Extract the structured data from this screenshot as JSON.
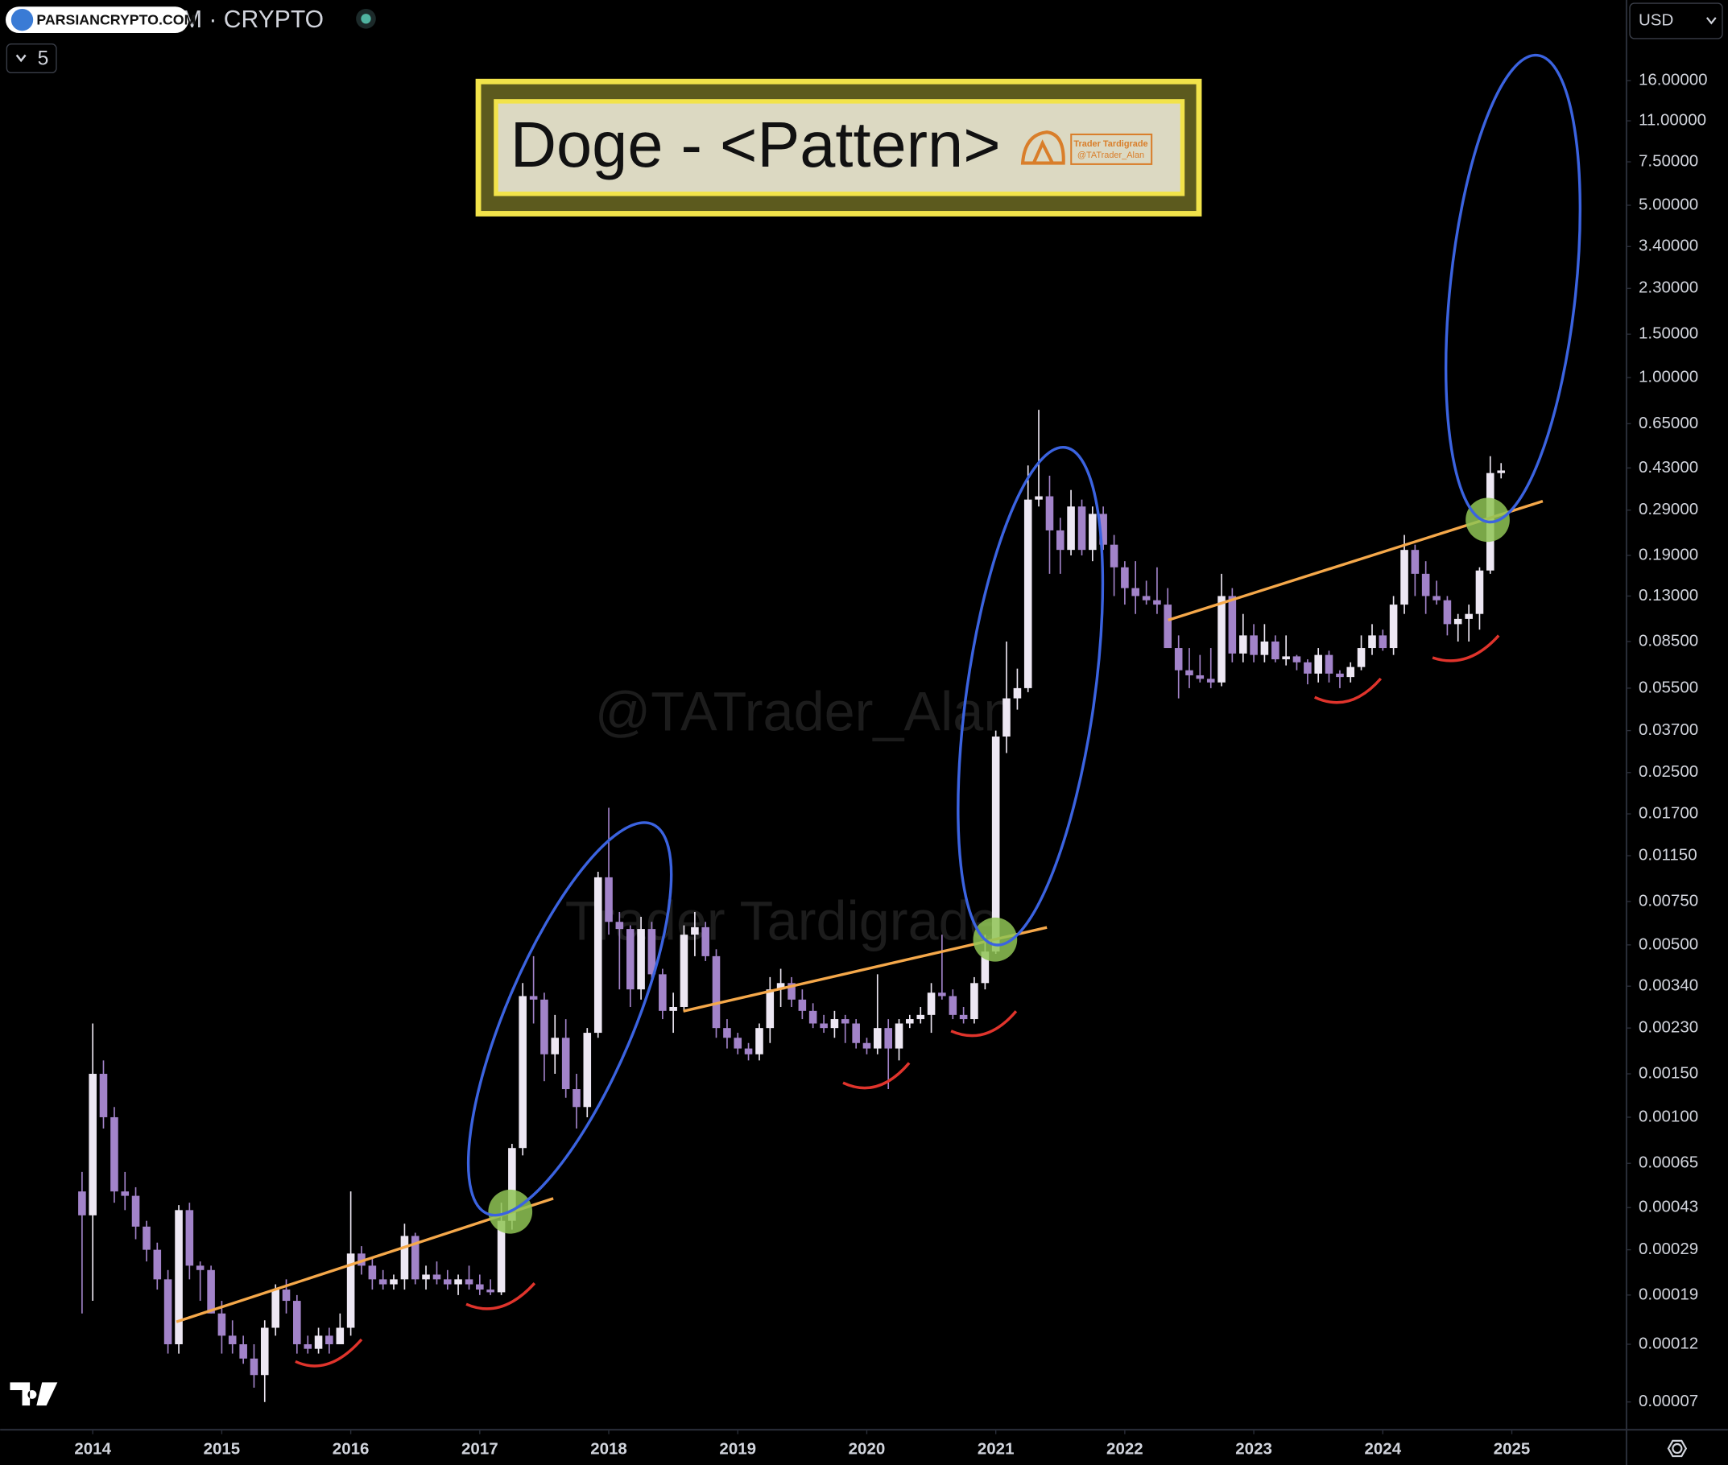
{
  "header": {
    "badge": "PARSIANCRYPTO.COM",
    "symbol": "M · CRYPTO",
    "interval": "5",
    "currency": "USD"
  },
  "chart_data": {
    "type": "candlestick",
    "title": "Doge - <Pattern>",
    "logo_text": [
      "Trader Tardigrade",
      "@TATrader_Alan"
    ],
    "watermarks": [
      "@TATrader_Alan",
      "Trader Tardigrade"
    ],
    "log_y": true,
    "up_color": "#ede7f3",
    "down_color": "#a283c9",
    "xlim": [
      2013.282,
      2025.889
    ],
    "xticks": [
      2014,
      2015,
      2016,
      2017,
      2018,
      2019,
      2020,
      2021,
      2022,
      2023,
      2024,
      2025
    ],
    "ylim": [
      5.4e-05,
      34
    ],
    "yticks": [
      {
        "value": 16,
        "label": "16.00000"
      },
      {
        "value": 11,
        "label": "11.00000"
      },
      {
        "value": 7.5,
        "label": "7.50000"
      },
      {
        "value": 5,
        "label": "5.00000"
      },
      {
        "value": 3.4,
        "label": "3.40000"
      },
      {
        "value": 2.3,
        "label": "2.30000"
      },
      {
        "value": 1.5,
        "label": "1.50000"
      },
      {
        "value": 1,
        "label": "1.00000"
      },
      {
        "value": 0.65,
        "label": "0.65000"
      },
      {
        "value": 0.43,
        "label": "0.43000"
      },
      {
        "value": 0.29,
        "label": "0.29000"
      },
      {
        "value": 0.19,
        "label": "0.19000"
      },
      {
        "value": 0.13,
        "label": "0.13000"
      },
      {
        "value": 0.085,
        "label": "0.08500"
      },
      {
        "value": 0.055,
        "label": "0.05500"
      },
      {
        "value": 0.037,
        "label": "0.03700"
      },
      {
        "value": 0.025,
        "label": "0.02500"
      },
      {
        "value": 0.017,
        "label": "0.01700"
      },
      {
        "value": 0.0115,
        "label": "0.01150"
      },
      {
        "value": 0.0075,
        "label": "0.00750"
      },
      {
        "value": 0.005,
        "label": "0.00500"
      },
      {
        "value": 0.0034,
        "label": "0.00340"
      },
      {
        "value": 0.0023,
        "label": "0.00230"
      },
      {
        "value": 0.0015,
        "label": "0.00150"
      },
      {
        "value": 0.001,
        "label": "0.00100"
      },
      {
        "value": 0.00065,
        "label": "0.00065"
      },
      {
        "value": 0.00043,
        "label": "0.00043"
      },
      {
        "value": 0.00029,
        "label": "0.00029"
      },
      {
        "value": 0.00019,
        "label": "0.00019"
      },
      {
        "value": 0.00012,
        "label": "0.00012"
      },
      {
        "value": 7e-05,
        "label": "0.00007"
      }
    ],
    "x": [
      2013.917,
      2014.0,
      2014.083,
      2014.167,
      2014.25,
      2014.333,
      2014.417,
      2014.5,
      2014.583,
      2014.667,
      2014.75,
      2014.833,
      2014.917,
      2015.0,
      2015.083,
      2015.167,
      2015.25,
      2015.333,
      2015.417,
      2015.5,
      2015.583,
      2015.667,
      2015.75,
      2015.833,
      2015.917,
      2016.0,
      2016.083,
      2016.167,
      2016.25,
      2016.333,
      2016.417,
      2016.5,
      2016.583,
      2016.667,
      2016.75,
      2016.833,
      2016.917,
      2017.0,
      2017.083,
      2017.167,
      2017.25,
      2017.333,
      2017.417,
      2017.5,
      2017.583,
      2017.667,
      2017.75,
      2017.833,
      2017.917,
      2018.0,
      2018.083,
      2018.167,
      2018.25,
      2018.333,
      2018.417,
      2018.5,
      2018.583,
      2018.667,
      2018.75,
      2018.833,
      2018.917,
      2019.0,
      2019.083,
      2019.167,
      2019.25,
      2019.333,
      2019.417,
      2019.5,
      2019.583,
      2019.667,
      2019.75,
      2019.833,
      2019.917,
      2020.0,
      2020.083,
      2020.167,
      2020.25,
      2020.333,
      2020.417,
      2020.5,
      2020.583,
      2020.667,
      2020.75,
      2020.833,
      2020.917,
      2021.0,
      2021.083,
      2021.167,
      2021.25,
      2021.333,
      2021.417,
      2021.5,
      2021.583,
      2021.667,
      2021.75,
      2021.833,
      2021.917,
      2022.0,
      2022.083,
      2022.167,
      2022.25,
      2022.333,
      2022.417,
      2022.5,
      2022.583,
      2022.667,
      2022.75,
      2022.833,
      2022.917,
      2023.0,
      2023.083,
      2023.167,
      2023.25,
      2023.333,
      2023.417,
      2023.5,
      2023.583,
      2023.667,
      2023.75,
      2023.833,
      2023.917,
      2024.0,
      2024.083,
      2024.167,
      2024.25,
      2024.333,
      2024.417,
      2024.5,
      2024.583,
      2024.667,
      2024.75,
      2024.833,
      2024.917
    ],
    "open": [
      0.0005,
      0.0004,
      0.0015,
      0.001,
      0.0005,
      0.00048,
      0.00036,
      0.00029,
      0.00022,
      0.00012,
      0.00042,
      0.00025,
      0.00024,
      0.00016,
      0.00013,
      0.00012,
      0.000105,
      9e-05,
      0.00014,
      0.0002,
      0.00018,
      0.00012,
      0.000115,
      0.00013,
      0.00012,
      0.00014,
      0.00028,
      0.00025,
      0.00022,
      0.00021,
      0.00022,
      0.00033,
      0.00022,
      0.00023,
      0.00022,
      0.00021,
      0.00022,
      0.00021,
      0.0002,
      0.000195,
      0.00038,
      0.00075,
      0.0031,
      0.003,
      0.0018,
      0.0021,
      0.0013,
      0.0011,
      0.0022,
      0.0094,
      0.0062,
      0.0058,
      0.0033,
      0.0058,
      0.0038,
      0.0027,
      0.0028,
      0.0055,
      0.0059,
      0.0045,
      0.0023,
      0.0021,
      0.0019,
      0.0018,
      0.0023,
      0.0033,
      0.0035,
      0.003,
      0.0027,
      0.0024,
      0.0023,
      0.0025,
      0.0024,
      0.002,
      0.0019,
      0.0023,
      0.0019,
      0.0024,
      0.0025,
      0.0026,
      0.0032,
      0.0031,
      0.0026,
      0.0025,
      0.0035,
      0.0047,
      0.035,
      0.05,
      0.055,
      0.32,
      0.33,
      0.24,
      0.2,
      0.3,
      0.2,
      0.28,
      0.21,
      0.17,
      0.14,
      0.13,
      0.125,
      0.12,
      0.08,
      0.065,
      0.062,
      0.06,
      0.058,
      0.13,
      0.076,
      0.09,
      0.075,
      0.085,
      0.072,
      0.074,
      0.07,
      0.063,
      0.075,
      0.063,
      0.061,
      0.067,
      0.08,
      0.09,
      0.08,
      0.12,
      0.2,
      0.16,
      0.13,
      0.125,
      0.1,
      0.105,
      0.11,
      0.165,
      0.41
    ],
    "high": [
      0.0006,
      0.0024,
      0.0017,
      0.0011,
      0.0006,
      0.00052,
      0.00038,
      0.00031,
      0.00024,
      0.00044,
      0.00045,
      0.00026,
      0.00025,
      0.00018,
      0.00015,
      0.00013,
      0.00012,
      0.00015,
      0.00021,
      0.00022,
      0.00019,
      0.00013,
      0.00014,
      0.00014,
      0.00016,
      0.0005,
      0.0003,
      0.00027,
      0.00024,
      0.00023,
      0.00037,
      0.00034,
      0.00025,
      0.00026,
      0.00024,
      0.00023,
      0.00025,
      0.00023,
      0.00022,
      0.00045,
      0.00078,
      0.0035,
      0.0045,
      0.0032,
      0.0026,
      0.0025,
      0.0015,
      0.0023,
      0.0099,
      0.018,
      0.0068,
      0.006,
      0.0065,
      0.0062,
      0.004,
      0.0032,
      0.006,
      0.0068,
      0.0062,
      0.0048,
      0.0025,
      0.0022,
      0.002,
      0.0024,
      0.0037,
      0.004,
      0.0037,
      0.0033,
      0.0029,
      0.0026,
      0.0027,
      0.0026,
      0.0025,
      0.0021,
      0.0038,
      0.0025,
      0.0025,
      0.0026,
      0.0028,
      0.0035,
      0.0055,
      0.0033,
      0.0028,
      0.0037,
      0.0055,
      0.037,
      0.085,
      0.066,
      0.44,
      0.74,
      0.4,
      0.27,
      0.35,
      0.32,
      0.3,
      0.3,
      0.23,
      0.18,
      0.18,
      0.15,
      0.17,
      0.14,
      0.09,
      0.08,
      0.075,
      0.08,
      0.16,
      0.14,
      0.11,
      0.1,
      0.1,
      0.09,
      0.09,
      0.075,
      0.072,
      0.08,
      0.078,
      0.065,
      0.07,
      0.09,
      0.1,
      0.095,
      0.13,
      0.23,
      0.21,
      0.18,
      0.15,
      0.13,
      0.11,
      0.12,
      0.17,
      0.48,
      0.45
    ],
    "low": [
      0.00016,
      0.00018,
      0.0009,
      0.00045,
      0.00042,
      0.00032,
      0.00026,
      0.0002,
      0.00011,
      0.00011,
      0.00022,
      0.00018,
      0.00016,
      0.00011,
      0.00011,
      0.0001,
      8e-05,
      7e-05,
      0.00013,
      0.00016,
      0.00011,
      0.00011,
      0.00011,
      0.00011,
      0.00012,
      0.00013,
      0.00023,
      0.0002,
      0.0002,
      0.0002,
      0.0002,
      0.00021,
      0.0002,
      0.00021,
      0.0002,
      0.00019,
      0.0002,
      0.00019,
      0.00019,
      0.00019,
      0.00035,
      0.0007,
      0.0024,
      0.0014,
      0.0015,
      0.0012,
      0.0009,
      0.001,
      0.0021,
      0.0055,
      0.0033,
      0.0028,
      0.003,
      0.0035,
      0.0025,
      0.0022,
      0.0027,
      0.0045,
      0.0043,
      0.0021,
      0.0019,
      0.0018,
      0.0017,
      0.0017,
      0.002,
      0.0028,
      0.0028,
      0.0025,
      0.0023,
      0.0022,
      0.0021,
      0.002,
      0.0019,
      0.0018,
      0.0018,
      0.0013,
      0.0017,
      0.0023,
      0.0024,
      0.0022,
      0.003,
      0.0025,
      0.0024,
      0.0024,
      0.0033,
      0.0046,
      0.03,
      0.045,
      0.053,
      0.3,
      0.16,
      0.16,
      0.19,
      0.19,
      0.18,
      0.2,
      0.13,
      0.12,
      0.11,
      0.12,
      0.11,
      0.08,
      0.05,
      0.055,
      0.058,
      0.055,
      0.056,
      0.07,
      0.07,
      0.07,
      0.07,
      0.07,
      0.068,
      0.065,
      0.057,
      0.058,
      0.058,
      0.055,
      0.058,
      0.065,
      0.075,
      0.078,
      0.075,
      0.11,
      0.13,
      0.11,
      0.12,
      0.09,
      0.085,
      0.085,
      0.095,
      0.16,
      0.39
    ],
    "close": [
      0.0004,
      0.0015,
      0.001,
      0.0005,
      0.00048,
      0.00036,
      0.00029,
      0.00022,
      0.00012,
      0.00042,
      0.00025,
      0.00024,
      0.00016,
      0.00013,
      0.00012,
      0.000105,
      9e-05,
      0.00014,
      0.0002,
      0.00018,
      0.00012,
      0.000115,
      0.00013,
      0.00012,
      0.00014,
      0.00028,
      0.00025,
      0.00022,
      0.00021,
      0.00022,
      0.00033,
      0.00022,
      0.00023,
      0.00022,
      0.00021,
      0.00022,
      0.00021,
      0.0002,
      0.000195,
      0.00038,
      0.00075,
      0.0031,
      0.003,
      0.0018,
      0.0021,
      0.0013,
      0.0011,
      0.0022,
      0.0094,
      0.0062,
      0.0058,
      0.0033,
      0.0058,
      0.0038,
      0.0027,
      0.0028,
      0.0055,
      0.0059,
      0.0045,
      0.0023,
      0.0021,
      0.0019,
      0.0018,
      0.0023,
      0.0033,
      0.0035,
      0.003,
      0.0027,
      0.0024,
      0.0023,
      0.0025,
      0.0024,
      0.002,
      0.0019,
      0.0023,
      0.0019,
      0.0024,
      0.0025,
      0.0026,
      0.0032,
      0.0031,
      0.0026,
      0.0025,
      0.0035,
      0.0047,
      0.035,
      0.05,
      0.055,
      0.32,
      0.33,
      0.24,
      0.2,
      0.3,
      0.2,
      0.28,
      0.21,
      0.17,
      0.14,
      0.13,
      0.125,
      0.12,
      0.08,
      0.065,
      0.062,
      0.06,
      0.058,
      0.13,
      0.076,
      0.09,
      0.075,
      0.085,
      0.072,
      0.074,
      0.07,
      0.063,
      0.075,
      0.063,
      0.061,
      0.067,
      0.08,
      0.09,
      0.08,
      0.12,
      0.2,
      0.16,
      0.13,
      0.125,
      0.1,
      0.105,
      0.11,
      0.165,
      0.41,
      0.42
    ]
  }
}
